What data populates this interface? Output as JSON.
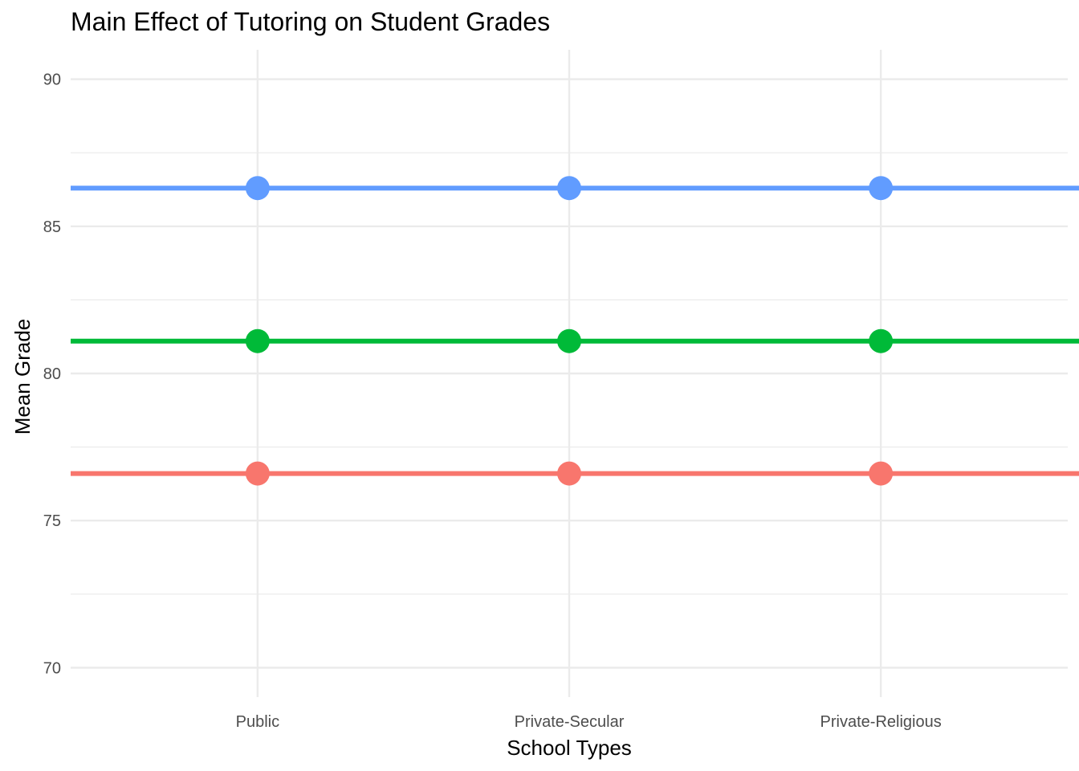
{
  "chart_data": {
    "type": "line",
    "title": "Main Effect of Tutoring on Student Grades",
    "xlabel": "School Types",
    "ylabel": "Mean Grade",
    "categories": [
      "Public",
      "Private-Secular",
      "Private-Religious"
    ],
    "ylim": [
      69,
      91
    ],
    "y_ticks": [
      70,
      75,
      80,
      85,
      90
    ],
    "y_tick_labels": [
      "70",
      "75",
      "80",
      "85",
      "90"
    ],
    "grid": true,
    "legend": "none",
    "series": [
      {
        "color": "#619CFF",
        "values": [
          86.3,
          86.3,
          86.3
        ]
      },
      {
        "color": "#00BA38",
        "values": [
          81.1,
          81.1,
          81.1
        ]
      },
      {
        "color": "#F8766D",
        "values": [
          76.6,
          76.6,
          76.6
        ]
      }
    ]
  }
}
